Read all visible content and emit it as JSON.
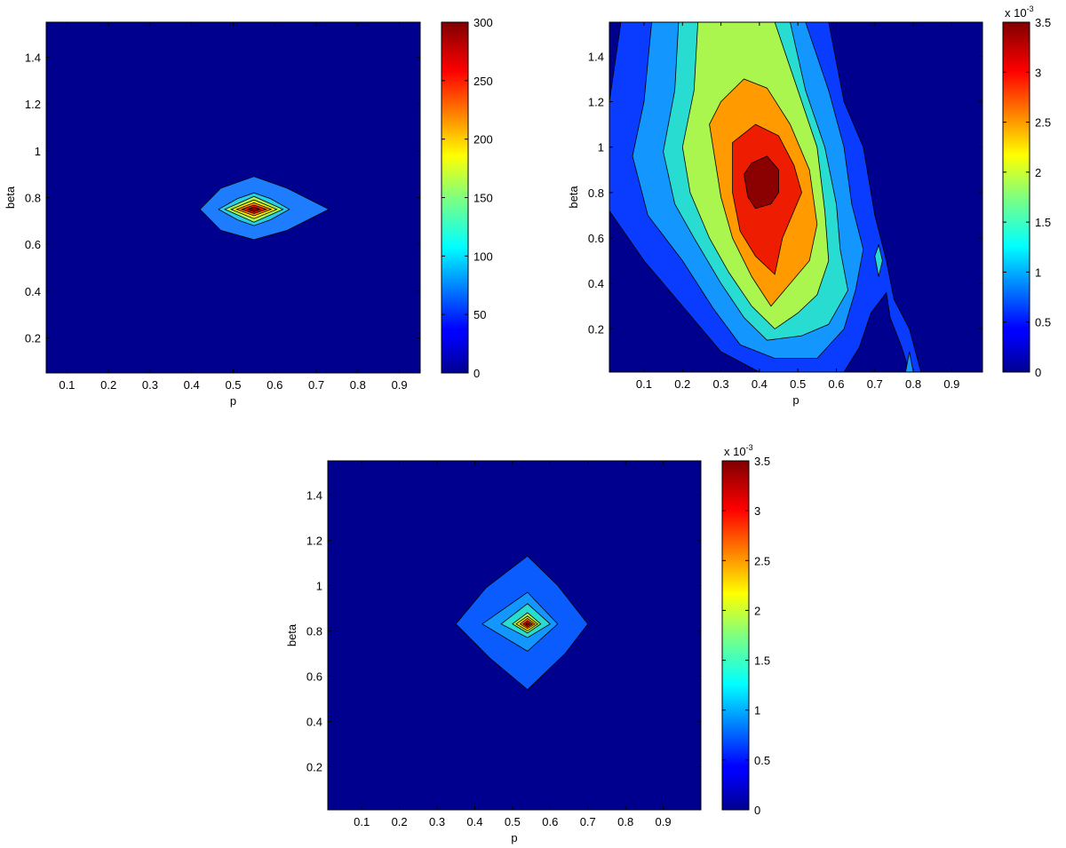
{
  "chart_data": [
    {
      "type": "contour",
      "xlabel": "p",
      "ylabel": "beta",
      "xlim": [
        0.05,
        0.95
      ],
      "ylim": [
        0.05,
        1.55
      ],
      "xticks": [
        "0.1",
        "0.2",
        "0.3",
        "0.4",
        "0.5",
        "0.6",
        "0.7",
        "0.8",
        "0.9"
      ],
      "yticks": [
        "0.2",
        "0.4",
        "0.6",
        "0.8",
        "1",
        "1.2",
        "1.4"
      ],
      "colorbar": {
        "min": 0,
        "max": 300,
        "ticks": [
          "0",
          "50",
          "100",
          "150",
          "200",
          "250",
          "300"
        ],
        "exponent": ""
      },
      "peak": {
        "x": 0.55,
        "y": 0.75,
        "value": 300
      },
      "levels": [
        {
          "value": 25,
          "color": "#1e7cff",
          "polygon": [
            [
              0.42,
              0.75
            ],
            [
              0.47,
              0.84
            ],
            [
              0.55,
              0.89
            ],
            [
              0.63,
              0.84
            ],
            [
              0.73,
              0.75
            ],
            [
              0.63,
              0.66
            ],
            [
              0.55,
              0.62
            ],
            [
              0.47,
              0.66
            ]
          ]
        },
        {
          "value": 75,
          "color": "#28cde6",
          "polygon": [
            [
              0.465,
              0.75
            ],
            [
              0.51,
              0.795
            ],
            [
              0.55,
              0.82
            ],
            [
              0.59,
              0.795
            ],
            [
              0.635,
              0.75
            ],
            [
              0.59,
              0.705
            ],
            [
              0.55,
              0.68
            ],
            [
              0.51,
              0.705
            ]
          ]
        },
        {
          "value": 125,
          "color": "#a8f55a",
          "polygon": [
            [
              0.48,
              0.75
            ],
            [
              0.55,
              0.805
            ],
            [
              0.62,
              0.75
            ],
            [
              0.55,
              0.695
            ]
          ]
        },
        {
          "value": 175,
          "color": "#fff200",
          "polygon": [
            [
              0.495,
              0.75
            ],
            [
              0.55,
              0.79
            ],
            [
              0.605,
              0.75
            ],
            [
              0.55,
              0.71
            ]
          ]
        },
        {
          "value": 225,
          "color": "#ff8c00",
          "polygon": [
            [
              0.508,
              0.75
            ],
            [
              0.55,
              0.778
            ],
            [
              0.592,
              0.75
            ],
            [
              0.55,
              0.722
            ]
          ]
        },
        {
          "value": 260,
          "color": "#ee1c00",
          "polygon": [
            [
              0.52,
              0.75
            ],
            [
              0.55,
              0.768
            ],
            [
              0.58,
              0.75
            ],
            [
              0.55,
              0.732
            ]
          ]
        },
        {
          "value": 290,
          "color": "#8b0000",
          "polygon": [
            [
              0.535,
              0.75
            ],
            [
              0.55,
              0.76
            ],
            [
              0.565,
              0.75
            ],
            [
              0.55,
              0.74
            ]
          ]
        }
      ]
    },
    {
      "type": "contour",
      "xlabel": "p",
      "ylabel": "beta",
      "xlim": [
        0.01,
        0.98
      ],
      "ylim": [
        0.01,
        1.55
      ],
      "xticks": [
        "0.1",
        "0.2",
        "0.3",
        "0.4",
        "0.5",
        "0.6",
        "0.7",
        "0.8",
        "0.9"
      ],
      "yticks": [
        "0.2",
        "0.4",
        "0.6",
        "0.8",
        "1",
        "1.2",
        "1.4"
      ],
      "colorbar": {
        "min": 0,
        "max": 3.5,
        "ticks": [
          "0",
          "0.5",
          "1",
          "1.5",
          "2",
          "2.5",
          "3",
          "3.5"
        ],
        "exponent": "x 10",
        "exponent_power": "-3"
      },
      "peak": {
        "x": 0.41,
        "y": 0.83,
        "value": 3.5
      },
      "levels": [
        {
          "value": 0.25,
          "color": "#0a3cff",
          "polygon": [
            [
              0.04,
              1.55
            ],
            [
              0.01,
              1.2
            ],
            [
              0.01,
              0.72
            ],
            [
              0.1,
              0.5
            ],
            [
              0.2,
              0.3
            ],
            [
              0.3,
              0.1
            ],
            [
              0.4,
              0.01
            ],
            [
              0.62,
              0.01
            ],
            [
              0.66,
              0.12
            ],
            [
              0.69,
              0.27
            ],
            [
              0.73,
              0.36
            ],
            [
              0.74,
              0.25
            ],
            [
              0.77,
              0.12
            ],
            [
              0.79,
              0.01
            ],
            [
              0.82,
              0.01
            ],
            [
              0.79,
              0.2
            ],
            [
              0.75,
              0.33
            ],
            [
              0.73,
              0.5
            ],
            [
              0.7,
              0.7
            ],
            [
              0.67,
              1.0
            ],
            [
              0.62,
              1.2
            ],
            [
              0.58,
              1.55
            ]
          ]
        },
        {
          "value": 0.75,
          "color": "#1496ff",
          "polygon": [
            [
              0.12,
              1.55
            ],
            [
              0.1,
              1.2
            ],
            [
              0.07,
              0.96
            ],
            [
              0.11,
              0.7
            ],
            [
              0.2,
              0.5
            ],
            [
              0.28,
              0.29
            ],
            [
              0.35,
              0.13
            ],
            [
              0.44,
              0.07
            ],
            [
              0.55,
              0.07
            ],
            [
              0.62,
              0.2
            ],
            [
              0.65,
              0.37
            ],
            [
              0.67,
              0.55
            ],
            [
              0.64,
              0.75
            ],
            [
              0.62,
              1.0
            ],
            [
              0.58,
              1.25
            ],
            [
              0.52,
              1.55
            ]
          ]
        },
        {
          "value": 1.25,
          "color": "#28dcd2",
          "polygon": [
            [
              0.19,
              1.55
            ],
            [
              0.18,
              1.25
            ],
            [
              0.15,
              0.98
            ],
            [
              0.18,
              0.75
            ],
            [
              0.23,
              0.6
            ],
            [
              0.3,
              0.4
            ],
            [
              0.36,
              0.25
            ],
            [
              0.42,
              0.15
            ],
            [
              0.51,
              0.17
            ],
            [
              0.58,
              0.22
            ],
            [
              0.63,
              0.37
            ],
            [
              0.61,
              0.55
            ],
            [
              0.6,
              0.75
            ],
            [
              0.57,
              1.0
            ],
            [
              0.52,
              1.25
            ],
            [
              0.48,
              1.55
            ]
          ]
        },
        {
          "value": 1.75,
          "color": "#aaf54e",
          "polygon": [
            [
              0.24,
              1.55
            ],
            [
              0.23,
              1.25
            ],
            [
              0.2,
              1.0
            ],
            [
              0.22,
              0.8
            ],
            [
              0.27,
              0.6
            ],
            [
              0.32,
              0.45
            ],
            [
              0.38,
              0.3
            ],
            [
              0.44,
              0.2
            ],
            [
              0.5,
              0.27
            ],
            [
              0.55,
              0.35
            ],
            [
              0.58,
              0.5
            ],
            [
              0.57,
              0.72
            ],
            [
              0.55,
              1.0
            ],
            [
              0.5,
              1.25
            ],
            [
              0.44,
              1.55
            ]
          ]
        },
        {
          "value": 2.25,
          "color": "#ff9a00",
          "polygon": [
            [
              0.27,
              1.1
            ],
            [
              0.3,
              0.78
            ],
            [
              0.33,
              0.6
            ],
            [
              0.38,
              0.43
            ],
            [
              0.43,
              0.3
            ],
            [
              0.48,
              0.4
            ],
            [
              0.53,
              0.5
            ],
            [
              0.55,
              0.66
            ],
            [
              0.53,
              0.9
            ],
            [
              0.48,
              1.1
            ],
            [
              0.42,
              1.26
            ],
            [
              0.36,
              1.3
            ],
            [
              0.3,
              1.2
            ]
          ]
        },
        {
          "value": 2.75,
          "color": "#ee1c00",
          "polygon": [
            [
              0.33,
              1.02
            ],
            [
              0.33,
              0.8
            ],
            [
              0.35,
              0.63
            ],
            [
              0.39,
              0.52
            ],
            [
              0.44,
              0.44
            ],
            [
              0.46,
              0.6
            ],
            [
              0.49,
              0.72
            ],
            [
              0.51,
              0.8
            ],
            [
              0.49,
              0.92
            ],
            [
              0.45,
              1.05
            ],
            [
              0.39,
              1.1
            ]
          ]
        },
        {
          "value": 3.25,
          "color": "#8b0000",
          "polygon": [
            [
              0.36,
              0.88
            ],
            [
              0.38,
              0.93
            ],
            [
              0.42,
              0.96
            ],
            [
              0.45,
              0.9
            ],
            [
              0.45,
              0.8
            ],
            [
              0.43,
              0.75
            ],
            [
              0.39,
              0.73
            ],
            [
              0.37,
              0.78
            ]
          ]
        },
        {
          "value": 1.25,
          "color": "#28dcd2",
          "polygon": [
            [
              0.7,
              0.52
            ],
            [
              0.71,
              0.57
            ],
            [
              0.72,
              0.5
            ],
            [
              0.71,
              0.43
            ]
          ]
        },
        {
          "value": 0.75,
          "color": "#1496ff",
          "polygon": [
            [
              0.78,
              0.01
            ],
            [
              0.79,
              0.1
            ],
            [
              0.8,
              0.01
            ]
          ]
        }
      ]
    },
    {
      "type": "contour",
      "xlabel": "p",
      "ylabel": "beta",
      "xlim": [
        0.01,
        1.0
      ],
      "ylim": [
        0.01,
        1.55
      ],
      "xticks": [
        "0.1",
        "0.2",
        "0.3",
        "0.4",
        "0.5",
        "0.6",
        "0.7",
        "0.8",
        "0.9"
      ],
      "yticks": [
        "0.2",
        "0.4",
        "0.6",
        "0.8",
        "1",
        "1.2",
        "1.4"
      ],
      "colorbar": {
        "min": 0,
        "max": 3.5,
        "ticks": [
          "0",
          "0.5",
          "1",
          "1.5",
          "2",
          "2.5",
          "3",
          "3.5"
        ],
        "exponent": "x 10",
        "exponent_power": "-3"
      },
      "peak": {
        "x": 0.54,
        "y": 0.83,
        "value": 3.5
      },
      "levels": [
        {
          "value": 0.25,
          "color": "#0a5cff",
          "polygon": [
            [
              0.35,
              0.83
            ],
            [
              0.43,
              0.99
            ],
            [
              0.54,
              1.13
            ],
            [
              0.62,
              1.0
            ],
            [
              0.7,
              0.83
            ],
            [
              0.64,
              0.7
            ],
            [
              0.54,
              0.54
            ],
            [
              0.44,
              0.68
            ]
          ]
        },
        {
          "value": 0.75,
          "color": "#1496ff",
          "polygon": [
            [
              0.42,
              0.83
            ],
            [
              0.54,
              0.97
            ],
            [
              0.62,
              0.83
            ],
            [
              0.54,
              0.71
            ]
          ]
        },
        {
          "value": 1.25,
          "color": "#28dcd2",
          "polygon": [
            [
              0.47,
              0.83
            ],
            [
              0.54,
              0.92
            ],
            [
              0.6,
              0.83
            ],
            [
              0.54,
              0.77
            ]
          ]
        },
        {
          "value": 1.75,
          "color": "#aaf54e",
          "polygon": [
            [
              0.5,
              0.83
            ],
            [
              0.54,
              0.88
            ],
            [
              0.575,
              0.83
            ],
            [
              0.54,
              0.79
            ]
          ]
        },
        {
          "value": 2.25,
          "color": "#ffe000",
          "polygon": [
            [
              0.51,
              0.83
            ],
            [
              0.54,
              0.865
            ],
            [
              0.567,
              0.83
            ],
            [
              0.54,
              0.8
            ]
          ]
        },
        {
          "value": 2.75,
          "color": "#ff8c00",
          "polygon": [
            [
              0.52,
              0.83
            ],
            [
              0.54,
              0.855
            ],
            [
              0.56,
              0.83
            ],
            [
              0.54,
              0.81
            ]
          ]
        },
        {
          "value": 3.1,
          "color": "#ee1c00",
          "polygon": [
            [
              0.528,
              0.83
            ],
            [
              0.54,
              0.845
            ],
            [
              0.553,
              0.83
            ],
            [
              0.54,
              0.817
            ]
          ]
        },
        {
          "value": 3.4,
          "color": "#8b0000",
          "polygon": [
            [
              0.535,
              0.83
            ],
            [
              0.54,
              0.837
            ],
            [
              0.546,
              0.83
            ],
            [
              0.54,
              0.824
            ]
          ]
        }
      ]
    }
  ]
}
